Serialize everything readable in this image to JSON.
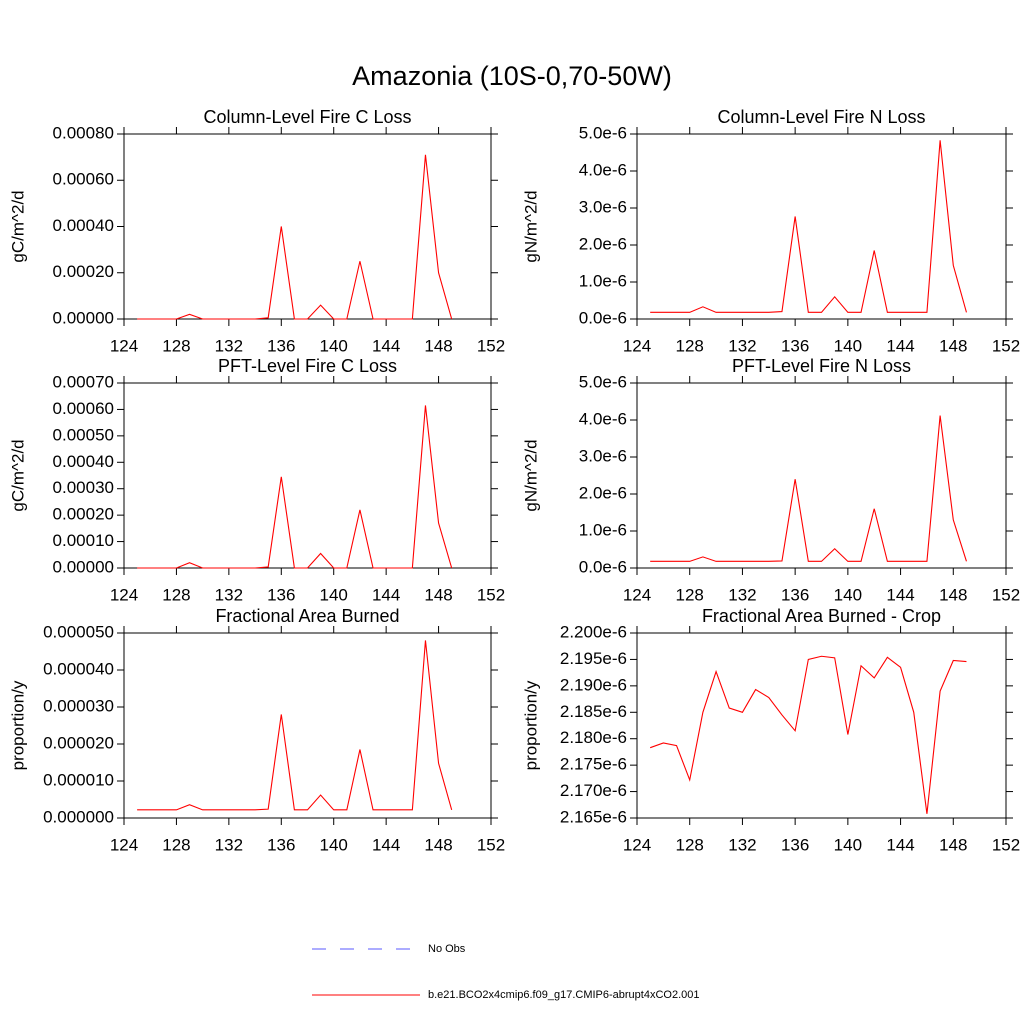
{
  "title": "Amazonia (10S-0,70-50W)",
  "legend": {
    "entries": [
      {
        "name": "No Obs",
        "color": "#5a5aff",
        "style": "dashed"
      }
    ]
  },
  "chart_data": [
    {
      "type": "line",
      "title": "Column-Level Fire C Loss",
      "ylabel": "gC/m^2/d",
      "x": [
        125,
        126,
        127,
        128,
        129,
        130,
        131,
        132,
        133,
        134,
        135,
        136,
        137,
        138,
        139,
        140,
        141,
        142,
        143,
        144,
        145,
        146,
        147,
        148,
        149
      ],
      "series": [
        {
          "name": "b.e21.BCO2x4cmip6.f09_g17.CMIP6-abrupt4xCO2.001",
          "color": "#ff0000",
          "values": [
            0,
            0,
            0,
            0,
            2e-05,
            0,
            0,
            0,
            0,
            0,
            5e-06,
            0.0004,
            0,
            0,
            6e-05,
            0,
            0,
            0.00025,
            0,
            0,
            0,
            0,
            0.00071,
            0.0002,
            0
          ]
        }
      ],
      "xlim": [
        124,
        152
      ],
      "xticks": [
        124,
        128,
        132,
        136,
        140,
        144,
        148,
        152
      ],
      "ylim": [
        0,
        0.0008
      ],
      "yticks": [
        {
          "value": 0,
          "label": "0.00000"
        },
        {
          "value": 0.0002,
          "label": "0.00020"
        },
        {
          "value": 0.0004,
          "label": "0.00040"
        },
        {
          "value": 0.0006,
          "label": "0.00060"
        },
        {
          "value": 0.0008,
          "label": "0.00080"
        }
      ]
    },
    {
      "type": "line",
      "title": "Column-Level Fire N Loss",
      "ylabel": "gN/m^2/d",
      "x": [
        125,
        126,
        127,
        128,
        129,
        130,
        131,
        132,
        133,
        134,
        135,
        136,
        137,
        138,
        139,
        140,
        141,
        142,
        143,
        144,
        145,
        146,
        147,
        148,
        149
      ],
      "series": [
        {
          "name": "b.e21.BCO2x4cmip6.f09_g17.CMIP6-abrupt4xCO2.001",
          "color": "#ff0000",
          "values": [
            1.8e-07,
            1.8e-07,
            1.8e-07,
            1.8e-07,
            3.3e-07,
            1.8e-07,
            1.8e-07,
            1.8e-07,
            1.8e-07,
            1.8e-07,
            2e-07,
            2.77e-06,
            1.8e-07,
            1.8e-07,
            6e-07,
            1.8e-07,
            1.8e-07,
            1.85e-06,
            1.8e-07,
            1.8e-07,
            1.8e-07,
            1.8e-07,
            4.83e-06,
            1.45e-06,
            1.8e-07
          ]
        }
      ],
      "xlim": [
        124,
        152
      ],
      "xticks": [
        124,
        128,
        132,
        136,
        140,
        144,
        148,
        152
      ],
      "ylim": [
        0,
        5e-06
      ],
      "yticks": [
        {
          "value": 0,
          "label": "0.0e-6"
        },
        {
          "value": 1e-06,
          "label": "1.0e-6"
        },
        {
          "value": 2e-06,
          "label": "2.0e-6"
        },
        {
          "value": 3e-06,
          "label": "3.0e-6"
        },
        {
          "value": 4e-06,
          "label": "4.0e-6"
        },
        {
          "value": 5e-06,
          "label": "5.0e-6"
        }
      ]
    },
    {
      "type": "line",
      "title": "PFT-Level Fire C Loss",
      "ylabel": "gC/m^2/d",
      "x": [
        125,
        126,
        127,
        128,
        129,
        130,
        131,
        132,
        133,
        134,
        135,
        136,
        137,
        138,
        139,
        140,
        141,
        142,
        143,
        144,
        145,
        146,
        147,
        148,
        149
      ],
      "series": [
        {
          "name": "b.e21.BCO2x4cmip6.f09_g17.CMIP6-abrupt4xCO2.001",
          "color": "#ff0000",
          "values": [
            0,
            0,
            0,
            0,
            2e-05,
            0,
            0,
            0,
            0,
            0,
            4e-06,
            0.000345,
            0,
            0,
            5.5e-05,
            0,
            0,
            0.00022,
            0,
            0,
            0,
            0,
            0.000615,
            0.00017,
            0
          ]
        }
      ],
      "xlim": [
        124,
        152
      ],
      "xticks": [
        124,
        128,
        132,
        136,
        140,
        144,
        148,
        152
      ],
      "ylim": [
        0,
        0.0007
      ],
      "yticks": [
        {
          "value": 0,
          "label": "0.00000"
        },
        {
          "value": 0.0001,
          "label": "0.00010"
        },
        {
          "value": 0.0002,
          "label": "0.00020"
        },
        {
          "value": 0.0003,
          "label": "0.00030"
        },
        {
          "value": 0.0004,
          "label": "0.00040"
        },
        {
          "value": 0.0005,
          "label": "0.00050"
        },
        {
          "value": 0.0006,
          "label": "0.00060"
        },
        {
          "value": 0.0007,
          "label": "0.00070"
        }
      ]
    },
    {
      "type": "line",
      "title": "PFT-Level Fire N Loss",
      "ylabel": "gN/m^2/d",
      "x": [
        125,
        126,
        127,
        128,
        129,
        130,
        131,
        132,
        133,
        134,
        135,
        136,
        137,
        138,
        139,
        140,
        141,
        142,
        143,
        144,
        145,
        146,
        147,
        148,
        149
      ],
      "series": [
        {
          "name": "b.e21.BCO2x4cmip6.f09_g17.CMIP6-abrupt4xCO2.001",
          "color": "#ff0000",
          "values": [
            1.8e-07,
            1.8e-07,
            1.8e-07,
            1.8e-07,
            3e-07,
            1.8e-07,
            1.8e-07,
            1.8e-07,
            1.8e-07,
            1.8e-07,
            1.9e-07,
            2.4e-06,
            1.8e-07,
            1.8e-07,
            5.2e-07,
            1.8e-07,
            1.8e-07,
            1.6e-06,
            1.8e-07,
            1.8e-07,
            1.8e-07,
            1.8e-07,
            4.12e-06,
            1.3e-06,
            1.8e-07
          ]
        }
      ],
      "xlim": [
        124,
        152
      ],
      "xticks": [
        124,
        128,
        132,
        136,
        140,
        144,
        148,
        152
      ],
      "ylim": [
        0,
        5e-06
      ],
      "yticks": [
        {
          "value": 0,
          "label": "0.0e-6"
        },
        {
          "value": 1e-06,
          "label": "1.0e-6"
        },
        {
          "value": 2e-06,
          "label": "2.0e-6"
        },
        {
          "value": 3e-06,
          "label": "3.0e-6"
        },
        {
          "value": 4e-06,
          "label": "4.0e-6"
        },
        {
          "value": 5e-06,
          "label": "5.0e-6"
        }
      ]
    },
    {
      "type": "line",
      "title": "Fractional Area Burned",
      "ylabel": "proportion/y",
      "x": [
        125,
        126,
        127,
        128,
        129,
        130,
        131,
        132,
        133,
        134,
        135,
        136,
        137,
        138,
        139,
        140,
        141,
        142,
        143,
        144,
        145,
        146,
        147,
        148,
        149
      ],
      "series": [
        {
          "name": "b.e21.BCO2x4cmip6.f09_g17.CMIP6-abrupt4xCO2.001",
          "color": "#ff0000",
          "values": [
            2.2e-06,
            2.2e-06,
            2.2e-06,
            2.2e-06,
            3.6e-06,
            2.2e-06,
            2.2e-06,
            2.2e-06,
            2.2e-06,
            2.2e-06,
            2.4e-06,
            2.8e-05,
            2.2e-06,
            2.2e-06,
            6.2e-06,
            2.2e-06,
            2.2e-06,
            1.85e-05,
            2.2e-06,
            2.2e-06,
            2.2e-06,
            2.2e-06,
            4.8e-05,
            1.48e-05,
            2.2e-06
          ]
        }
      ],
      "xlim": [
        124,
        152
      ],
      "xticks": [
        124,
        128,
        132,
        136,
        140,
        144,
        148,
        152
      ],
      "ylim": [
        0,
        5e-05
      ],
      "yticks": [
        {
          "value": 0,
          "label": "0.000000"
        },
        {
          "value": 1e-05,
          "label": "0.000010"
        },
        {
          "value": 2e-05,
          "label": "0.000020"
        },
        {
          "value": 3e-05,
          "label": "0.000030"
        },
        {
          "value": 4e-05,
          "label": "0.000040"
        },
        {
          "value": 5e-05,
          "label": "0.000050"
        }
      ]
    },
    {
      "type": "line",
      "title": "Fractional Area Burned - Crop",
      "ylabel": "proportion/y",
      "x": [
        125,
        126,
        127,
        128,
        129,
        130,
        131,
        132,
        133,
        134,
        135,
        136,
        137,
        138,
        139,
        140,
        141,
        142,
        143,
        144,
        145,
        146,
        147,
        148,
        149
      ],
      "series": [
        {
          "name": "b.e21.BCO2x4cmip6.f09_g17.CMIP6-abrupt4xCO2.001",
          "color": "#ff0000",
          "values": [
            2.1783e-06,
            2.1792e-06,
            2.1787e-06,
            2.1722e-06,
            2.185e-06,
            2.1927e-06,
            2.1858e-06,
            2.185e-06,
            2.1893e-06,
            2.1878e-06,
            2.1845e-06,
            2.1815e-06,
            2.195e-06,
            2.1956e-06,
            2.1953e-06,
            2.1808e-06,
            2.1938e-06,
            2.1915e-06,
            2.1954e-06,
            2.1935e-06,
            2.185e-06,
            2.1658e-06,
            2.189e-06,
            2.1948e-06,
            2.1946e-06
          ]
        }
      ],
      "xlim": [
        124,
        152
      ],
      "xticks": [
        124,
        128,
        132,
        136,
        140,
        144,
        148,
        152
      ],
      "ylim": [
        2.165e-06,
        2.2e-06
      ],
      "yticks": [
        {
          "value": 2.165e-06,
          "label": "2.165e-6"
        },
        {
          "value": 2.17e-06,
          "label": "2.170e-6"
        },
        {
          "value": 2.175e-06,
          "label": "2.175e-6"
        },
        {
          "value": 2.18e-06,
          "label": "2.180e-6"
        },
        {
          "value": 2.185e-06,
          "label": "2.185e-6"
        },
        {
          "value": 2.19e-06,
          "label": "2.190e-6"
        },
        {
          "value": 2.195e-06,
          "label": "2.195e-6"
        },
        {
          "value": 2.2e-06,
          "label": "2.200e-6"
        }
      ]
    }
  ]
}
